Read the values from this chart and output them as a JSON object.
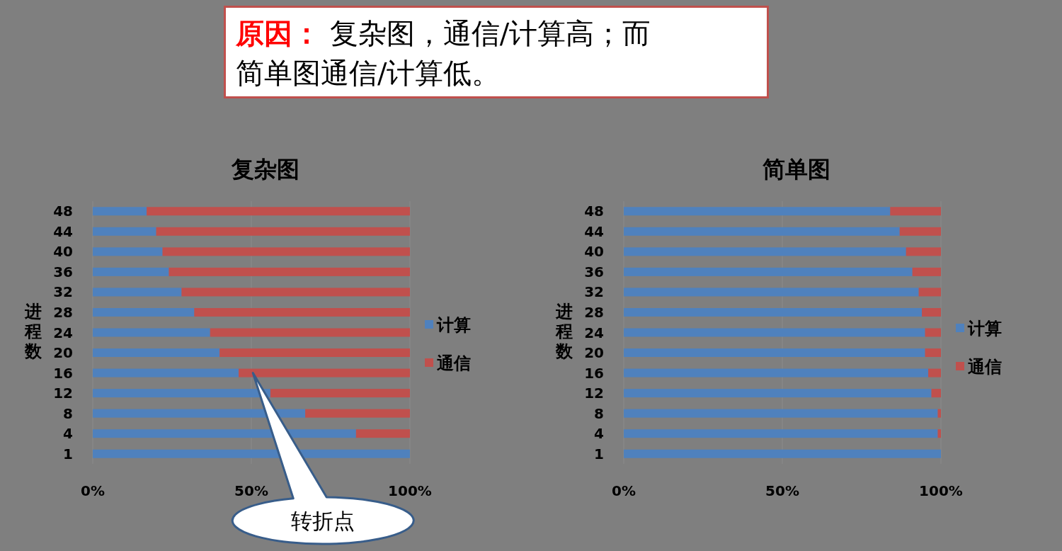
{
  "chart_data": [
    {
      "type": "bar",
      "orientation": "horizontal",
      "stacked": true,
      "title": "复杂图",
      "ylabel": "进程数",
      "categories": [
        "48",
        "44",
        "40",
        "36",
        "32",
        "28",
        "24",
        "20",
        "16",
        "12",
        "8",
        "4",
        "1"
      ],
      "series": [
        {
          "name": "计算",
          "color": "#4f81bd",
          "values": [
            17,
            20,
            22,
            24,
            28,
            32,
            37,
            40,
            46,
            56,
            67,
            83,
            100
          ]
        },
        {
          "name": "通信",
          "color": "#c0504d",
          "values": [
            83,
            80,
            78,
            76,
            72,
            68,
            63,
            60,
            54,
            44,
            33,
            17,
            0
          ]
        }
      ],
      "xlim": [
        0,
        100
      ],
      "xticks": [
        {
          "value": 0,
          "label": "0%"
        },
        {
          "value": 50,
          "label": "50%"
        },
        {
          "value": 100,
          "label": "100%"
        }
      ],
      "grid": "x",
      "legend": "right",
      "annotations": [
        "**原因：** 复杂图，通信/计算高；而简单图通信/计算低。",
        "转折点"
      ]
    },
    {
      "type": "bar",
      "orientation": "horizontal",
      "stacked": true,
      "title": "简单图",
      "ylabel": "进程数",
      "categories": [
        "48",
        "44",
        "40",
        "36",
        "32",
        "28",
        "24",
        "20",
        "16",
        "12",
        "8",
        "4",
        "1"
      ],
      "series": [
        {
          "name": "计算",
          "color": "#4f81bd",
          "values": [
            84,
            87,
            89,
            91,
            93,
            94,
            95,
            95,
            96,
            97,
            99,
            99,
            100
          ]
        },
        {
          "name": "通信",
          "color": "#c0504d",
          "values": [
            16,
            13,
            11,
            9,
            7,
            6,
            5,
            5,
            4,
            3,
            1,
            1,
            0
          ]
        }
      ],
      "xlim": [
        0,
        100
      ],
      "xticks": [
        {
          "value": 0,
          "label": "0%"
        },
        {
          "value": 50,
          "label": "50%"
        },
        {
          "value": 100,
          "label": "100%"
        }
      ],
      "grid": "x",
      "legend": "right"
    }
  ]
}
